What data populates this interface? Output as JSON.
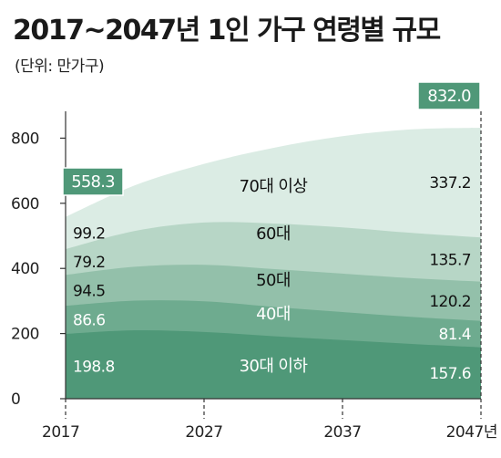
{
  "header": {
    "title": "2017~2047년 1인 가구 연령별 규모",
    "unit": "(단위: 만가구)"
  },
  "colors": {
    "band_30": "#4f9878",
    "band_40": "#6eab8f",
    "band_50": "#93c0aa",
    "band_60": "#b7d6c6",
    "band_70": "#dbece4",
    "total_box": "#4f9878",
    "axis": "#333333"
  },
  "chart_data": {
    "type": "area",
    "stacked": true,
    "title": "2017~2047년 1인 가구 연령별 규모",
    "unit": "(단위: 만가구)",
    "x": [
      2017,
      2022,
      2027,
      2032,
      2037,
      2042,
      2047
    ],
    "x_tick_labels": [
      "2017",
      "2027",
      "2037",
      "2047년"
    ],
    "x_ticks": [
      2017,
      2027,
      2037,
      2047
    ],
    "y_ticks": [
      0,
      200,
      400,
      600,
      800
    ],
    "ylim": [
      0,
      860
    ],
    "series": [
      {
        "name": "30대 이하",
        "values": [
          198.8,
          210,
          205,
          192,
          180,
          168,
          157.6
        ]
      },
      {
        "name": "40대",
        "values": [
          86.6,
          91,
          94,
          90,
          86,
          83,
          81.4
        ]
      },
      {
        "name": "50대",
        "values": [
          94.5,
          104,
          112,
          116,
          118,
          119,
          120.2
        ]
      },
      {
        "name": "60대",
        "values": [
          79.2,
          110,
          130,
          140,
          142,
          139,
          135.7
        ]
      },
      {
        "name": "70대 이상",
        "values": [
          99.2,
          140,
          180,
          232,
          280,
          318,
          337.2
        ]
      }
    ],
    "start_labels": [
      "198.8",
      "86.6",
      "94.5",
      "79.2",
      "99.2"
    ],
    "end_labels": [
      "157.6",
      "81.4",
      "120.2",
      "135.7",
      "337.2"
    ],
    "totals": {
      "start": "558.3",
      "end": "832.0"
    }
  }
}
